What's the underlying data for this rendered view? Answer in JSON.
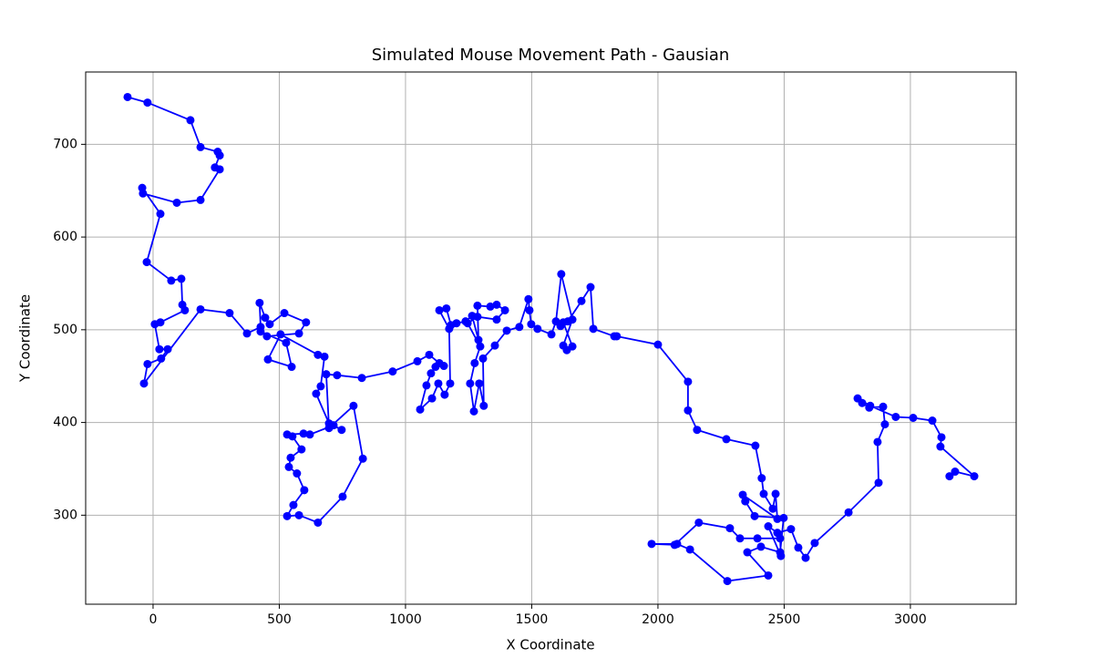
{
  "chart_data": {
    "type": "line",
    "title": "Simulated Mouse Movement Path - Gausian",
    "xlabel": "X Coordinate",
    "ylabel": "Y Coordinate",
    "color": "#0000ff",
    "markers": true,
    "grid": true,
    "xlim": [
      -267,
      3419
    ],
    "ylim": [
      204,
      778
    ],
    "xticks": [
      0,
      500,
      1000,
      1500,
      2000,
      2500,
      3000
    ],
    "yticks": [
      300,
      400,
      500,
      600,
      700
    ],
    "x": [
      -101,
      -22,
      148,
      188,
      256,
      264,
      245,
      264,
      188,
      94,
      -40,
      -43,
      29,
      -25,
      72,
      112,
      116,
      126,
      29,
      7,
      25,
      58,
      32,
      -22,
      -36,
      188,
      303,
      372,
      426,
      422,
      444,
      462,
      520,
      606,
      578,
      451,
      426,
      527,
      549,
      455,
      505,
      653,
      679,
      664,
      646,
      697,
      747,
      715,
      621,
      596,
      531,
      552,
      588,
      545,
      538,
      570,
      599,
      556,
      531,
      578,
      653,
      751,
      831,
      794,
      697,
      686,
      729,
      827,
      949,
      1047,
      1094,
      1134,
      1152,
      1119,
      1101,
      1083,
      1058,
      1105,
      1130,
      1155,
      1177,
      1173,
      1134,
      1162,
      1180,
      1202,
      1238,
      1264,
      1289,
      1285,
      1336,
      1361,
      1394,
      1361,
      1285,
      1246,
      1296,
      1274,
      1256,
      1271,
      1292,
      1310,
      1307,
      1354,
      1401,
      1451,
      1487,
      1491,
      1498,
      1523,
      1578,
      1596,
      1617,
      1661,
      1625,
      1639,
      1661,
      1625,
      1614,
      1643,
      1697,
      1733,
      1744,
      1827,
      1837,
      2000,
      2119,
      2119,
      2155,
      2271,
      2386,
      2411,
      2419,
      2455,
      2466,
      2473,
      2336,
      2346,
      2383,
      2498,
      2484,
      2408,
      2354,
      2437,
      2275,
      2127,
      2076,
      1975,
      2066,
      2162,
      2285,
      2325,
      2394,
      2484,
      2487,
      2437,
      2473,
      2527,
      2556,
      2585,
      2621,
      2755,
      2874,
      2870,
      2899,
      2892,
      2837,
      2809,
      2791,
      2841,
      2942,
      3011,
      3087,
      3123,
      3119,
      3253,
      3177,
      3155
    ],
    "values": [
      751,
      745,
      726,
      697,
      692,
      688,
      675,
      673,
      640,
      637,
      647,
      653,
      625,
      573,
      553,
      555,
      527,
      521,
      508,
      506,
      479,
      479,
      469,
      463,
      442,
      522,
      518,
      496,
      503,
      529,
      513,
      506,
      518,
      508,
      496,
      493,
      498,
      486,
      460,
      468,
      495,
      473,
      471,
      439,
      431,
      399,
      392,
      397,
      387,
      388,
      387,
      385,
      371,
      362,
      352,
      345,
      327,
      311,
      299,
      300,
      292,
      320,
      361,
      418,
      394,
      452,
      451,
      448,
      455,
      466,
      473,
      464,
      461,
      460,
      453,
      440,
      414,
      426,
      442,
      430,
      442,
      501,
      521,
      523,
      505,
      507,
      509,
      515,
      489,
      526,
      525,
      527,
      521,
      511,
      514,
      507,
      482,
      464,
      442,
      412,
      442,
      418,
      469,
      483,
      499,
      503,
      533,
      521,
      506,
      501,
      495,
      509,
      560,
      511,
      483,
      478,
      482,
      508,
      504,
      509,
      531,
      546,
      501,
      493,
      493,
      484,
      444,
      413,
      392,
      382,
      375,
      340,
      323,
      307,
      323,
      296,
      322,
      315,
      299,
      297,
      260,
      266,
      260,
      235,
      229,
      263,
      269,
      269,
      268,
      292,
      286,
      275,
      275,
      275,
      256,
      288,
      281,
      285,
      265,
      254,
      270,
      303,
      335,
      379,
      398,
      417,
      416,
      421,
      426,
      418,
      406,
      405,
      402,
      384,
      374,
      342,
      347,
      342
    ]
  }
}
